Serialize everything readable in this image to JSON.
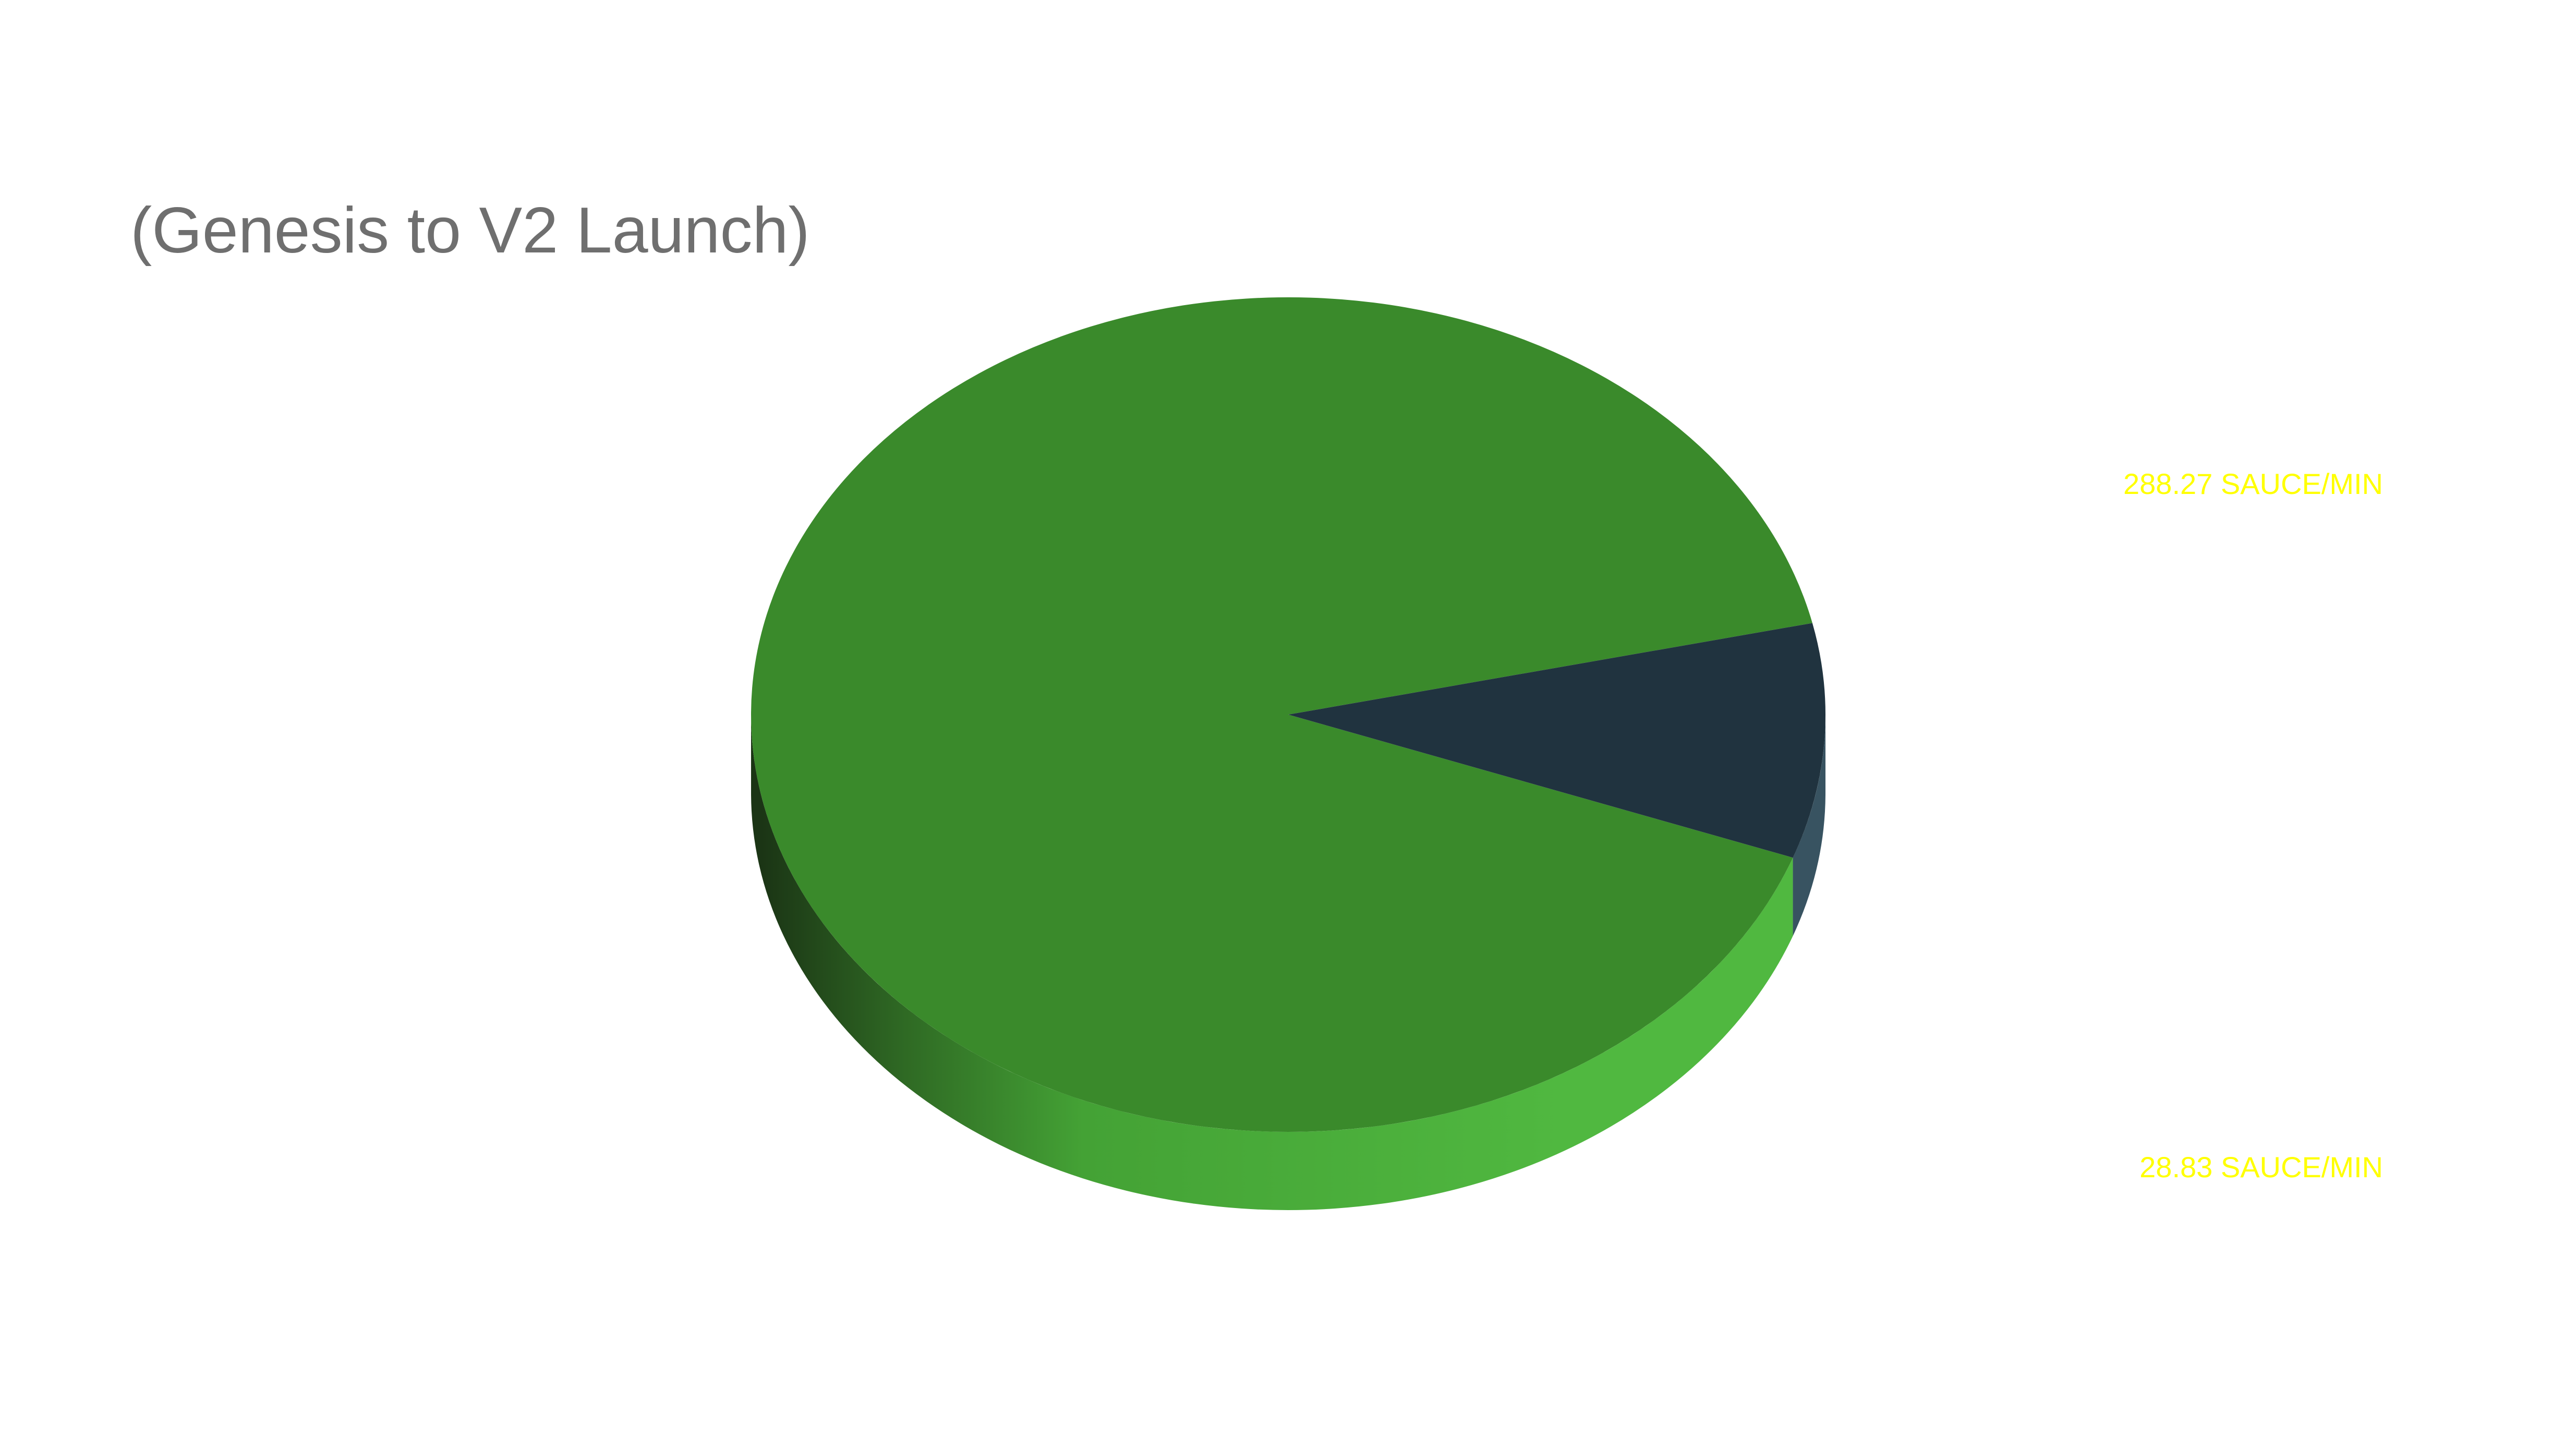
{
  "chart_data": {
    "type": "pie",
    "title": "",
    "subtitle": "(Genesis to V2 Launch)",
    "style": "3d",
    "slices": [
      {
        "value": 288.27,
        "label": "288.27 SAUCE/MIN",
        "color": "#3a8a2b",
        "side_color": "#4fb43f",
        "dark_side_color": "#1f3d17"
      },
      {
        "value": 28.83,
        "label": "28.83 SAUCE/MIN",
        "color": "#20333f",
        "side_color": "#385361"
      }
    ],
    "label_color": "#ffff00",
    "legend": "right"
  }
}
